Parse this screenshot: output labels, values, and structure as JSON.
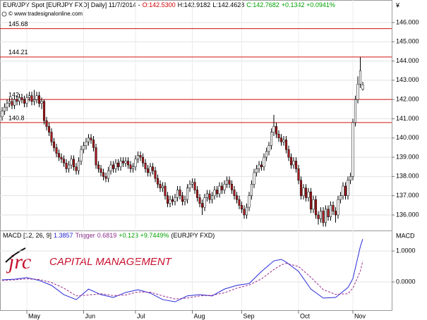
{
  "currency": "¥",
  "copyright": "© www.tradesignalonline.com",
  "logo": {
    "mark": "jrc",
    "text": "CAPITAL MANAGEMENT"
  },
  "chart_data": [
    {
      "type": "candlestick",
      "header": [
        {
          "text": "EUR/JPY Spot [EURJPY FXD]  Daily] 11/7/2014 -",
          "color": "#000000"
        },
        {
          "text": "O:142.5300",
          "color": "#d00000"
        },
        {
          "text": "H:142.9182",
          "color": "#000000"
        },
        {
          "text": "L:142.4628",
          "color": "#000000"
        },
        {
          "text": "C:142.7682",
          "color": "#00a000"
        },
        {
          "text": "+0.1342 +0.0941%",
          "color": "#00a000"
        }
      ],
      "categories": [
        null,
        null,
        null,
        null,
        null,
        null,
        null,
        null,
        null,
        null,
        "May",
        null,
        null,
        null,
        null,
        null,
        null,
        null,
        null,
        null,
        null,
        null,
        null,
        null,
        null,
        null,
        null,
        null,
        null,
        null,
        null,
        null,
        null,
        "Jun",
        null,
        null,
        null,
        null,
        null,
        null,
        null,
        null,
        null,
        null,
        null,
        null,
        null,
        null,
        null,
        null,
        null,
        null,
        null,
        null,
        "Jul",
        null,
        null,
        null,
        null,
        null,
        null,
        null,
        null,
        null,
        null,
        null,
        null,
        null,
        null,
        null,
        null,
        null,
        null,
        null,
        null,
        null,
        null,
        "Aug",
        null,
        null,
        null,
        null,
        null,
        null,
        null,
        null,
        null,
        null,
        null,
        null,
        null,
        null,
        null,
        null,
        null,
        null,
        null,
        "Sep",
        null,
        null,
        null,
        null,
        null,
        null,
        null,
        null,
        null,
        null,
        null,
        null,
        null,
        null,
        null,
        null,
        null,
        null,
        null,
        null,
        null,
        null,
        "Oct",
        null,
        null,
        null,
        null,
        null,
        null,
        null,
        null,
        null,
        null,
        null,
        null,
        null,
        null,
        null,
        null,
        null,
        null,
        null,
        null,
        null,
        "Nov",
        null,
        null,
        null,
        null
      ],
      "open": [
        141.1,
        141.4,
        141.6,
        141.8,
        141.9,
        141.7,
        142.0,
        141.9,
        142.1,
        142.0,
        141.8,
        142.1,
        142.2,
        141.9,
        142.0,
        142.2,
        141.8,
        141.9,
        140.9,
        140.6,
        140.3,
        139.8,
        139.5,
        139.2,
        139.0,
        138.9,
        138.7,
        138.4,
        138.6,
        138.9,
        138.5,
        138.3,
        138.8,
        139.4,
        139.6,
        139.8,
        140.0,
        139.9,
        139.5,
        138.6,
        138.4,
        138.2,
        138.0,
        137.9,
        138.3,
        138.6,
        138.4,
        138.7,
        138.5,
        138.8,
        138.7,
        138.8,
        138.6,
        138.4,
        138.5,
        138.9,
        139.1,
        139.0,
        138.7,
        138.4,
        138.2,
        138.5,
        138.3,
        137.9,
        137.6,
        137.4,
        137.5,
        137.0,
        136.6,
        136.8,
        136.7,
        136.9,
        137.3,
        137.0,
        136.7,
        136.8,
        137.4,
        137.6,
        137.7,
        137.3,
        136.9,
        136.6,
        136.4,
        136.9,
        137.1,
        136.8,
        137.0,
        137.3,
        137.1,
        137.5,
        137.3,
        137.6,
        137.8,
        137.6,
        137.3,
        137.0,
        136.8,
        136.5,
        136.3,
        136.0,
        136.4,
        137.0,
        137.6,
        138.2,
        138.4,
        138.6,
        138.5,
        139.0,
        139.3,
        139.6,
        140.3,
        140.6,
        140.2,
        140.0,
        139.8,
        139.9,
        139.4,
        139.0,
        138.6,
        138.8,
        138.4,
        137.8,
        137.0,
        137.4,
        136.9,
        137.2,
        136.3,
        136.8,
        136.0,
        135.8,
        136.2,
        135.6,
        136.3,
        135.9,
        136.5,
        136.2,
        136.0,
        136.8,
        137.0,
        137.5,
        137.0,
        137.8,
        138.0,
        140.8,
        142.0,
        142.8,
        142.53
      ],
      "high": [
        141.6,
        141.8,
        142.0,
        142.1,
        142.1,
        142.2,
        142.2,
        142.3,
        142.3,
        142.2,
        142.3,
        142.4,
        142.4,
        142.5,
        142.4,
        142.4,
        142.1,
        142.0,
        141.1,
        140.8,
        140.5,
        140.0,
        139.7,
        139.4,
        139.2,
        139.1,
        138.9,
        138.8,
        139.1,
        139.1,
        138.7,
        139.0,
        139.6,
        139.8,
        140.0,
        140.2,
        140.2,
        140.1,
        139.7,
        138.8,
        138.6,
        138.4,
        138.2,
        138.5,
        138.8,
        138.8,
        138.9,
        138.9,
        139.0,
        139.0,
        139.0,
        139.0,
        138.8,
        138.7,
        139.1,
        139.3,
        139.3,
        139.2,
        138.9,
        138.6,
        138.7,
        138.7,
        138.5,
        138.1,
        137.8,
        137.7,
        137.7,
        137.2,
        137.0,
        137.0,
        137.1,
        137.5,
        137.5,
        137.2,
        137.0,
        137.6,
        137.8,
        137.9,
        137.9,
        137.5,
        137.1,
        136.8,
        137.1,
        137.3,
        137.3,
        137.2,
        137.5,
        137.5,
        137.7,
        137.7,
        137.8,
        138.0,
        138.0,
        137.8,
        137.5,
        137.2,
        137.0,
        136.7,
        136.5,
        136.6,
        137.2,
        137.8,
        138.4,
        138.6,
        138.8,
        138.8,
        139.2,
        139.5,
        139.8,
        140.5,
        141.2,
        140.8,
        140.4,
        140.2,
        140.1,
        140.1,
        139.6,
        139.2,
        139.0,
        139.0,
        138.6,
        138.0,
        137.6,
        137.6,
        137.4,
        137.4,
        137.0,
        137.0,
        136.2,
        136.4,
        136.4,
        136.5,
        136.5,
        136.7,
        136.7,
        136.4,
        137.0,
        137.2,
        137.7,
        137.7,
        138.0,
        138.2,
        141.0,
        142.2,
        143.2,
        144.21,
        142.9182
      ],
      "low": [
        140.9,
        141.2,
        141.4,
        141.6,
        141.5,
        141.5,
        141.7,
        141.7,
        141.8,
        141.6,
        141.6,
        141.9,
        141.7,
        141.7,
        141.8,
        141.6,
        141.5,
        140.7,
        140.4,
        140.1,
        139.6,
        139.3,
        139.0,
        138.8,
        138.7,
        138.5,
        138.2,
        138.2,
        138.4,
        138.3,
        138.1,
        138.1,
        138.6,
        139.2,
        139.4,
        139.6,
        139.7,
        139.3,
        138.4,
        138.2,
        138.0,
        137.8,
        137.7,
        137.7,
        138.1,
        138.2,
        138.2,
        138.3,
        138.3,
        138.5,
        138.5,
        138.4,
        138.2,
        138.2,
        138.3,
        138.7,
        138.8,
        138.5,
        138.2,
        138.0,
        138.0,
        138.1,
        137.7,
        137.4,
        137.2,
        137.2,
        136.8,
        136.4,
        136.4,
        136.5,
        136.5,
        136.7,
        136.8,
        136.5,
        136.5,
        136.6,
        137.2,
        137.4,
        137.1,
        136.7,
        136.4,
        136.0,
        136.2,
        136.7,
        136.6,
        136.6,
        136.8,
        136.9,
        136.9,
        137.1,
        137.1,
        137.4,
        137.4,
        137.1,
        136.8,
        136.6,
        136.3,
        136.1,
        135.8,
        135.8,
        136.2,
        136.8,
        137.4,
        138.0,
        138.2,
        138.3,
        138.3,
        138.8,
        139.1,
        139.4,
        140.1,
        140.0,
        139.8,
        139.6,
        139.6,
        139.2,
        138.8,
        138.4,
        138.4,
        138.2,
        137.6,
        136.8,
        136.8,
        136.7,
        136.7,
        136.1,
        136.1,
        135.8,
        135.5,
        135.6,
        135.4,
        135.4,
        135.7,
        135.7,
        136.0,
        135.6,
        135.8,
        136.6,
        136.8,
        136.8,
        136.8,
        137.6,
        137.8,
        140.6,
        141.8,
        142.6,
        142.4628
      ],
      "close": [
        141.4,
        141.6,
        141.8,
        141.9,
        141.7,
        142.0,
        141.9,
        142.1,
        142.0,
        141.8,
        142.1,
        142.2,
        141.9,
        142.0,
        142.2,
        141.8,
        141.9,
        140.9,
        140.6,
        140.3,
        139.8,
        139.5,
        139.2,
        139.0,
        138.9,
        138.7,
        138.4,
        138.6,
        138.9,
        138.5,
        138.3,
        138.8,
        139.4,
        139.6,
        139.8,
        140.0,
        139.9,
        139.5,
        138.6,
        138.4,
        138.2,
        138.0,
        137.9,
        138.3,
        138.6,
        138.4,
        138.7,
        138.5,
        138.8,
        138.7,
        138.8,
        138.6,
        138.4,
        138.5,
        138.9,
        139.1,
        139.0,
        138.7,
        138.4,
        138.2,
        138.5,
        138.3,
        137.9,
        137.6,
        137.4,
        137.5,
        137.0,
        136.6,
        136.8,
        136.7,
        136.9,
        137.3,
        137.0,
        136.7,
        136.8,
        137.4,
        137.6,
        137.7,
        137.3,
        136.9,
        136.6,
        136.4,
        136.9,
        137.1,
        136.8,
        137.0,
        137.3,
        137.1,
        137.5,
        137.3,
        137.6,
        137.8,
        137.6,
        137.3,
        137.0,
        136.8,
        136.5,
        136.3,
        136.0,
        136.4,
        137.0,
        137.6,
        138.2,
        138.4,
        138.6,
        138.5,
        139.0,
        139.3,
        139.6,
        140.3,
        140.6,
        140.2,
        140.0,
        139.8,
        139.9,
        139.4,
        139.0,
        138.6,
        138.8,
        138.4,
        137.8,
        137.0,
        137.4,
        136.9,
        137.2,
        136.3,
        136.8,
        136.0,
        135.8,
        136.2,
        135.6,
        136.3,
        135.9,
        136.5,
        136.2,
        136.0,
        136.8,
        137.0,
        137.5,
        137.0,
        137.8,
        138.0,
        140.8,
        142.0,
        142.8,
        143.5,
        142.7682
      ],
      "up_color": "#ffffff",
      "down_color": "#a8181c",
      "wick_color": "#000000",
      "levels": [
        145.68,
        144.21,
        142,
        140.8
      ],
      "level_color": "#d01010",
      "ylim": [
        135.23,
        147.17
      ],
      "yticks": [
        {
          "value": 136,
          "label": "136.000"
        },
        {
          "value": 137,
          "label": "137.000"
        },
        {
          "value": 138,
          "label": "138.000"
        },
        {
          "value": 139,
          "label": "139.000"
        },
        {
          "value": 140,
          "label": "140.000"
        },
        {
          "value": 141,
          "label": "141.000"
        },
        {
          "value": 142,
          "label": "142.000"
        },
        {
          "value": 143,
          "label": "143.000"
        },
        {
          "value": 144,
          "label": "144.000"
        },
        {
          "value": 145,
          "label": "145.000"
        },
        {
          "value": 146,
          "label": "146.000"
        }
      ],
      "grid": true
    },
    {
      "type": "line",
      "axis_label": "MACD",
      "header": [
        {
          "text": "MACD [12, 26, 9]",
          "color": "#000000"
        },
        {
          "text": "1.3857",
          "color": "#2020d0"
        },
        {
          "text": "Trigger",
          "color": "#8a2a8a"
        },
        {
          "text": "0.6819",
          "color": "#8a2a8a"
        },
        {
          "text": "+0.123 +9.7449%",
          "color": "#00a000"
        },
        {
          "text": "(EURJPY FXD)",
          "color": "#000000"
        }
      ],
      "x": [
        0,
        5,
        10,
        15,
        20,
        25,
        30,
        35,
        40,
        45,
        50,
        55,
        60,
        65,
        70,
        75,
        80,
        85,
        90,
        95,
        100,
        105,
        110,
        113,
        115,
        120,
        125,
        130,
        135,
        140,
        142,
        145,
        146
      ],
      "series": [
        {
          "name": "MACD",
          "color": "#2a2ad8",
          "dash": false,
          "values": [
            0.07,
            0.09,
            0.14,
            0.05,
            -0.11,
            -0.41,
            -0.57,
            -0.23,
            -0.41,
            -0.5,
            -0.34,
            -0.25,
            -0.36,
            -0.57,
            -0.64,
            -0.45,
            -0.41,
            -0.45,
            -0.23,
            -0.11,
            -0.05,
            0.34,
            0.68,
            0.73,
            0.64,
            0.34,
            -0.23,
            -0.52,
            -0.5,
            -0.18,
            0.11,
            1.14,
            1.3857
          ]
        },
        {
          "name": "Trigger",
          "color": "#9a2a8a",
          "dash": true,
          "values": [
            0.05,
            0.07,
            0.1,
            0.08,
            -0.02,
            -0.2,
            -0.45,
            -0.42,
            -0.38,
            -0.44,
            -0.42,
            -0.32,
            -0.33,
            -0.45,
            -0.55,
            -0.52,
            -0.45,
            -0.43,
            -0.35,
            -0.2,
            -0.1,
            0.1,
            0.4,
            0.55,
            0.6,
            0.5,
            0.15,
            -0.25,
            -0.4,
            -0.38,
            -0.2,
            0.35,
            0.6819
          ]
        }
      ],
      "xlim": [
        -0.857,
        157.714
      ],
      "ylim": [
        -0.91,
        1.64
      ],
      "yticks": [
        {
          "value": 0,
          "label": "0.0000"
        },
        {
          "value": 1,
          "label": "1.0000"
        }
      ],
      "grid": true
    }
  ]
}
